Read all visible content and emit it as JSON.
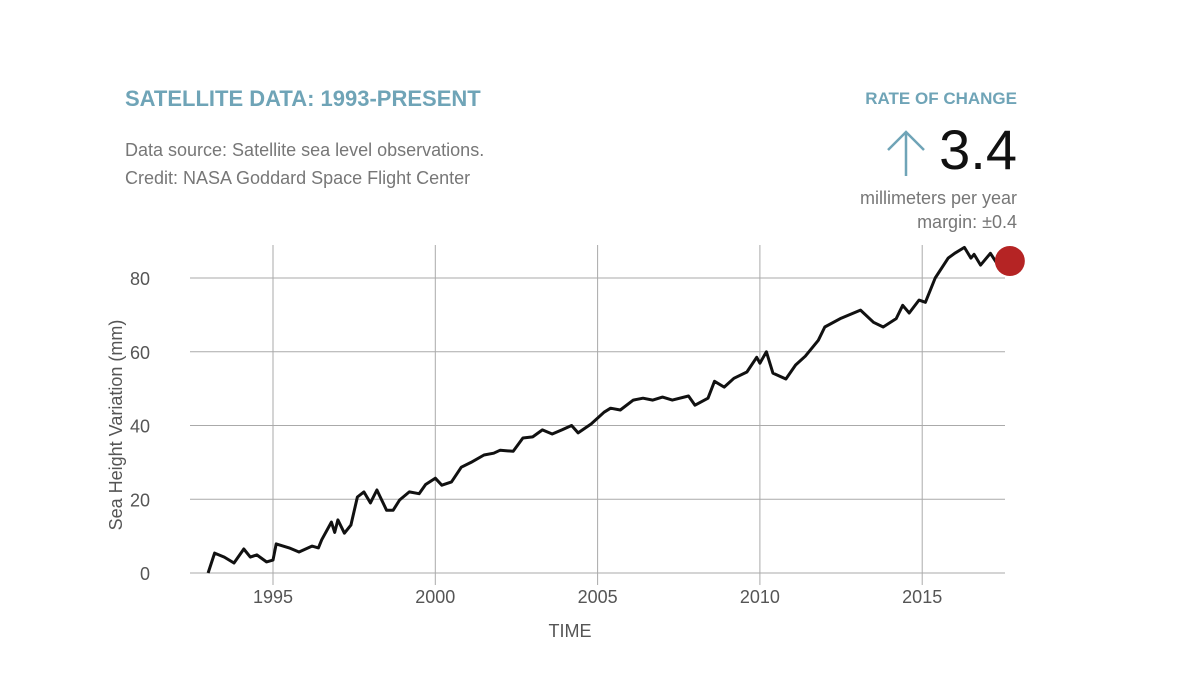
{
  "header": {
    "title": "SATELLITE DATA: 1993-PRESENT",
    "source": "Data source: Satellite sea level observations.",
    "credit": "Credit: NASA Goddard Space Flight Center"
  },
  "rate": {
    "label": "RATE OF CHANGE",
    "value": "3.4",
    "direction": "up-arrow-icon",
    "units": "millimeters per year",
    "margin": "margin: ±0.4"
  },
  "colors": {
    "accent": "#6fa4b7",
    "line": "#111111",
    "marker": "#b52424",
    "grid": "#999999"
  },
  "chart_data": {
    "type": "line",
    "title": "SATELLITE DATA: 1993-PRESENT",
    "xlabel": "TIME",
    "ylabel": "Sea Height Variation (mm)",
    "xlim": [
      1993,
      2017.7
    ],
    "ylim": [
      0,
      85
    ],
    "xticks": [
      1995,
      2000,
      2005,
      2010,
      2015
    ],
    "yticks": [
      0,
      20,
      40,
      60,
      80
    ],
    "grid": true,
    "series": [
      {
        "name": "Sea Height Variation",
        "x": [
          1993.0,
          1993.2,
          1993.5,
          1993.8,
          1994.1,
          1994.3,
          1994.5,
          1994.8,
          1995.0,
          1995.1,
          1995.5,
          1995.8,
          1996.2,
          1996.4,
          1996.5,
          1996.8,
          1996.9,
          1997.0,
          1997.2,
          1997.4,
          1997.6,
          1997.8,
          1998.0,
          1998.2,
          1998.5,
          1998.7,
          1998.9,
          1999.2,
          1999.5,
          1999.7,
          2000.0,
          2000.2,
          2000.5,
          2000.8,
          2001.1,
          2001.5,
          2001.8,
          2002.0,
          2002.4,
          2002.7,
          2003.0,
          2003.3,
          2003.6,
          2003.9,
          2004.2,
          2004.4,
          2004.8,
          2005.2,
          2005.4,
          2005.7,
          2006.1,
          2006.4,
          2006.7,
          2007.0,
          2007.3,
          2007.8,
          2008.0,
          2008.4,
          2008.6,
          2008.9,
          2009.2,
          2009.6,
          2009.9,
          2010.0,
          2010.2,
          2010.4,
          2010.8,
          2011.1,
          2011.4,
          2011.8,
          2012.0,
          2012.5,
          2013.1,
          2013.5,
          2013.8,
          2014.2,
          2014.4,
          2014.6,
          2014.9,
          2015.1,
          2015.4,
          2015.8,
          2016.0,
          2016.3,
          2016.5,
          2016.6,
          2016.8,
          2017.1,
          2017.3,
          2017.7
        ],
        "y": [
          0,
          5.4,
          4.3,
          2.7,
          6.5,
          4.3,
          4.9,
          3,
          3.5,
          7.9,
          6.8,
          5.7,
          7.3,
          6.8,
          9,
          13.8,
          11,
          14.4,
          10.8,
          13,
          20.6,
          22,
          19,
          22.5,
          17,
          17,
          19.8,
          22,
          21.5,
          24,
          25.7,
          23.8,
          24.7,
          28.7,
          30,
          32,
          32.5,
          33.3,
          33,
          36.6,
          36.9,
          38.8,
          37.7,
          38.8,
          40,
          38,
          40.4,
          43.6,
          44.7,
          44.2,
          46.9,
          47.4,
          46.9,
          47.7,
          46.9,
          48,
          45.5,
          47.4,
          52,
          50.4,
          52.8,
          54.5,
          58.5,
          56.9,
          60,
          54.2,
          52.6,
          56.4,
          58.8,
          63.1,
          66.7,
          69.1,
          71.3,
          68,
          66.7,
          69,
          72.6,
          70.5,
          74,
          73.4,
          80,
          85.4,
          86.7,
          88.3,
          85.4,
          86.4,
          83.5,
          86.7,
          84,
          84.6
        ]
      }
    ]
  }
}
